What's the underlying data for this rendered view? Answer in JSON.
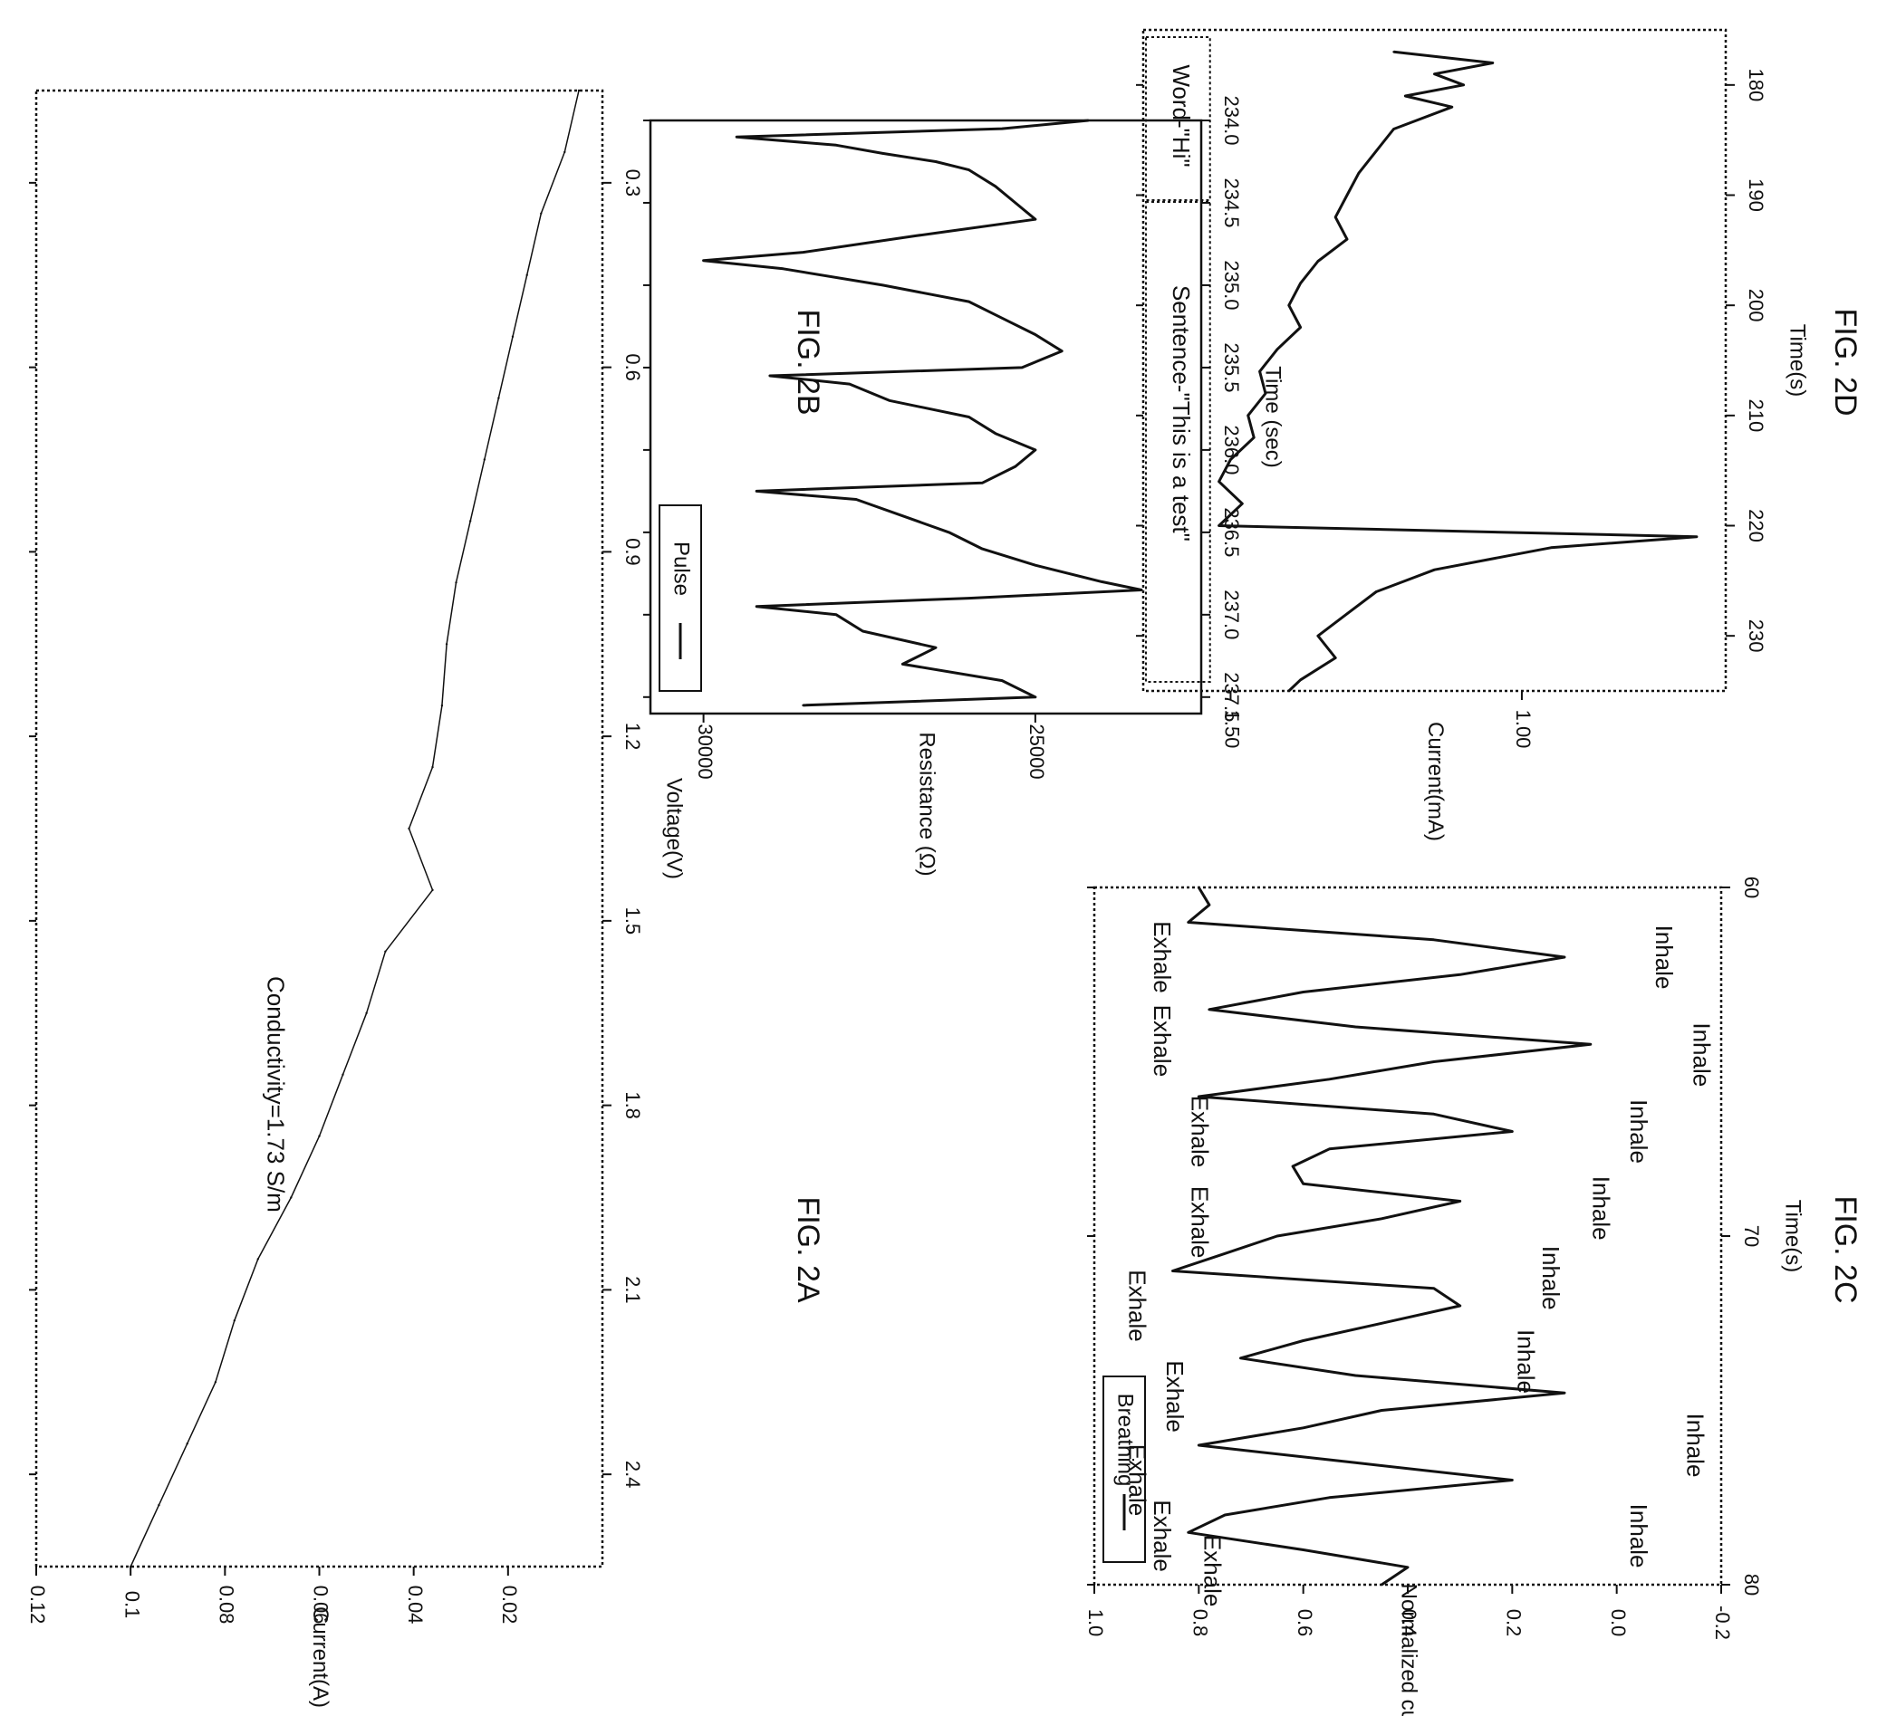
{
  "figures": [
    {
      "id": "2A",
      "label": "FIG. 2A"
    },
    {
      "id": "2B",
      "label": "FIG. 2B"
    },
    {
      "id": "2C",
      "label": "FIG. 2C"
    },
    {
      "id": "2D",
      "label": "FIG. 2D"
    }
  ],
  "colors": {
    "ink": "#111111",
    "paper": "#ffffff"
  },
  "chart_data": [
    {
      "id": "2A",
      "type": "line",
      "xlabel": "Voltage(V)",
      "ylabel": "Current(A)",
      "xlim": [
        0.15,
        2.55
      ],
      "ylim": [
        0,
        0.12
      ],
      "xticks": [
        "0.3",
        "0.6",
        "0.9",
        "1.2",
        "1.5",
        "1.8",
        "2.1",
        "2.4"
      ],
      "yticks": [
        "0.02",
        "0.04",
        "0.06",
        "0.08",
        "0.1",
        "0.12"
      ],
      "annotation": "Conductivity=1.73 S/m",
      "grid": false,
      "series": [
        {
          "x": [
            0.15,
            0.25,
            0.35,
            0.45,
            0.55,
            0.65,
            0.75,
            0.85,
            0.95,
            1.05,
            1.15,
            1.25,
            1.35,
            1.45,
            1.55,
            1.65,
            1.75,
            1.85,
            1.95,
            2.05,
            2.15,
            2.25,
            2.35,
            2.45,
            2.55
          ],
          "y": [
            0.005,
            0.008,
            0.013,
            0.016,
            0.019,
            0.022,
            0.025,
            0.028,
            0.031,
            0.033,
            0.034,
            0.036,
            0.041,
            0.036,
            0.046,
            0.05,
            0.055,
            0.06,
            0.066,
            0.073,
            0.078,
            0.082,
            0.088,
            0.094,
            0.1
          ]
        }
      ]
    },
    {
      "id": "2B",
      "type": "line",
      "xlabel": "Time (sec)",
      "ylabel": "Resistance (Ω)",
      "xlim": [
        234.0,
        237.6
      ],
      "ylim": [
        22500,
        30800
      ],
      "xticks": [
        "234.0",
        "234.5",
        "235.0",
        "235.5",
        "236.0",
        "236.5",
        "237.0",
        "237.5"
      ],
      "yticks": [
        "25000",
        "30000"
      ],
      "legend": "top-right",
      "grid": false,
      "series": [
        {
          "name": "Pulse",
          "x": [
            234.0,
            234.05,
            234.1,
            234.15,
            234.2,
            234.25,
            234.3,
            234.4,
            234.5,
            234.6,
            234.7,
            234.8,
            234.85,
            234.9,
            235.0,
            235.1,
            235.2,
            235.3,
            235.4,
            235.5,
            235.55,
            235.6,
            235.7,
            235.8,
            235.9,
            236.0,
            236.1,
            236.2,
            236.25,
            236.3,
            236.4,
            236.5,
            236.6,
            236.7,
            236.8,
            236.85,
            236.9,
            236.95,
            237.0,
            237.1,
            237.2,
            237.3,
            237.4,
            237.5,
            237.55
          ],
          "y": [
            24200,
            25500,
            29500,
            28000,
            27300,
            26500,
            26000,
            25600,
            25300,
            25000,
            26800,
            28500,
            30000,
            28800,
            27300,
            26000,
            25500,
            25000,
            24600,
            25200,
            29000,
            27800,
            27200,
            26000,
            25600,
            25000,
            25300,
            25800,
            29200,
            27700,
            27000,
            26300,
            25800,
            25000,
            24000,
            23400,
            26000,
            29200,
            28000,
            27600,
            26500,
            27000,
            25500,
            25000,
            28500
          ]
        }
      ]
    },
    {
      "id": "2C",
      "type": "line",
      "xlabel": "Time(s)",
      "ylabel": "Normalized current",
      "xlim": [
        60,
        80
      ],
      "ylim": [
        -0.2,
        1.0
      ],
      "xticks": [
        "60",
        "70",
        "80"
      ],
      "yticks": [
        "-0.2",
        "0.0",
        "0.2",
        "0.4",
        "0.6",
        "0.8",
        "1.0"
      ],
      "legend": "top-right",
      "grid": false,
      "annotations": [
        "Inhale",
        "Exhale",
        "Inhale",
        "Exhale",
        "Inhale",
        "Exhale",
        "Inhale",
        "Exhale",
        "Inhale",
        "Exhale",
        "Inhale",
        "Exhale",
        "Inhale",
        "Exhale",
        "Inhale",
        "Exhale",
        "Exhale"
      ],
      "series": [
        {
          "name": "Breathing",
          "x": [
            60,
            60.5,
            61,
            61.5,
            62,
            62.5,
            63,
            63.5,
            64,
            64.5,
            65,
            65.5,
            66,
            66.5,
            67,
            67.5,
            68,
            68.5,
            69,
            69.5,
            70,
            70.5,
            71,
            71.5,
            72,
            72.5,
            73,
            73.5,
            74,
            74.5,
            75,
            75.5,
            76,
            76.5,
            77,
            77.5,
            78,
            78.5,
            79,
            79.5,
            80
          ],
          "y": [
            0.8,
            0.78,
            0.82,
            0.35,
            0.1,
            0.3,
            0.6,
            0.78,
            0.5,
            0.05,
            0.35,
            0.55,
            0.8,
            0.35,
            0.2,
            0.55,
            0.62,
            0.6,
            0.3,
            0.45,
            0.65,
            0.75,
            0.85,
            0.35,
            0.3,
            0.45,
            0.6,
            0.72,
            0.5,
            0.1,
            0.45,
            0.6,
            0.8,
            0.5,
            0.2,
            0.55,
            0.75,
            0.82,
            0.6,
            0.4,
            0.45
          ]
        }
      ]
    },
    {
      "id": "2D",
      "type": "line",
      "xlabel": "Time(s)",
      "ylabel": "Current(mA)",
      "xlim": [
        175,
        235
      ],
      "ylim": [
        0.65,
        1.65
      ],
      "xticks": [
        "180",
        "190",
        "200",
        "210",
        "220",
        "230"
      ],
      "yticks": [
        "1.00",
        "1.50"
      ],
      "annotations": [
        "Sentence-\"This is a test\"",
        "Word-\"Hi\""
      ],
      "grid": false,
      "series": [
        {
          "x": [
            177,
            178,
            179,
            180,
            181,
            182,
            184,
            186,
            188,
            190,
            192,
            194,
            196,
            198,
            200,
            202,
            204,
            206,
            208,
            210,
            212,
            214,
            216,
            218,
            220,
            221,
            222,
            224,
            226,
            228,
            230,
            232,
            234,
            235
          ],
          "y": [
            1.22,
            1.05,
            1.15,
            1.1,
            1.2,
            1.12,
            1.22,
            1.25,
            1.28,
            1.3,
            1.32,
            1.3,
            1.35,
            1.38,
            1.4,
            1.38,
            1.42,
            1.45,
            1.44,
            1.47,
            1.46,
            1.5,
            1.52,
            1.48,
            1.52,
            0.7,
            0.95,
            1.15,
            1.25,
            1.3,
            1.35,
            1.32,
            1.38,
            1.4
          ]
        }
      ]
    }
  ]
}
